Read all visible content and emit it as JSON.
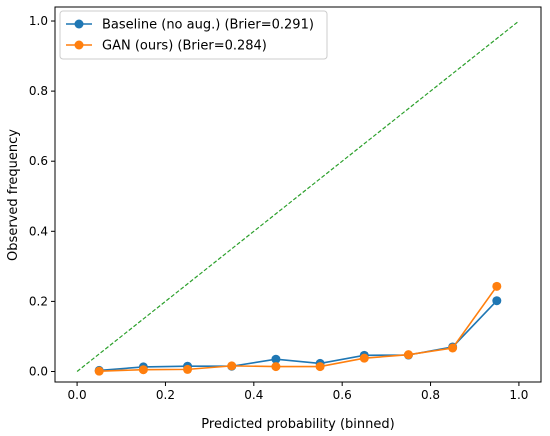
{
  "chart_data": {
    "type": "line",
    "title": "",
    "xlabel": "Predicted probability (binned)",
    "ylabel": "Observed frequency",
    "xlim": [
      -0.05,
      1.05
    ],
    "ylim": [
      -0.03,
      1.04
    ],
    "xticks": [
      0.0,
      0.2,
      0.4,
      0.6,
      0.8,
      1.0
    ],
    "xtick_labels": [
      "0.0",
      "0.2",
      "0.4",
      "0.6",
      "0.8",
      "1.0"
    ],
    "yticks": [
      0.0,
      0.2,
      0.4,
      0.6,
      0.8,
      1.0
    ],
    "ytick_labels": [
      "0.0",
      "0.2",
      "0.4",
      "0.6",
      "0.8",
      "1.0"
    ],
    "grid": false,
    "legend_position": "top-left",
    "reference_line": {
      "style": "dashed",
      "color": "#2ca02c",
      "x": [
        0.0,
        1.0
      ],
      "y": [
        0.0,
        1.0
      ]
    },
    "series": [
      {
        "name": "Baseline (no aug.) (Brier=0.291)",
        "color": "#1f77b4",
        "x": [
          0.05,
          0.15,
          0.25,
          0.35,
          0.45,
          0.55,
          0.65,
          0.75,
          0.85,
          0.95
        ],
        "y": [
          0.003,
          0.013,
          0.015,
          0.015,
          0.035,
          0.023,
          0.046,
          0.047,
          0.07,
          0.202
        ]
      },
      {
        "name": "GAN (ours) (Brier=0.284)",
        "color": "#ff7f0e",
        "x": [
          0.05,
          0.15,
          0.25,
          0.35,
          0.45,
          0.55,
          0.65,
          0.75,
          0.85,
          0.95
        ],
        "y": [
          0.001,
          0.005,
          0.006,
          0.016,
          0.014,
          0.014,
          0.038,
          0.048,
          0.067,
          0.243
        ]
      }
    ]
  }
}
